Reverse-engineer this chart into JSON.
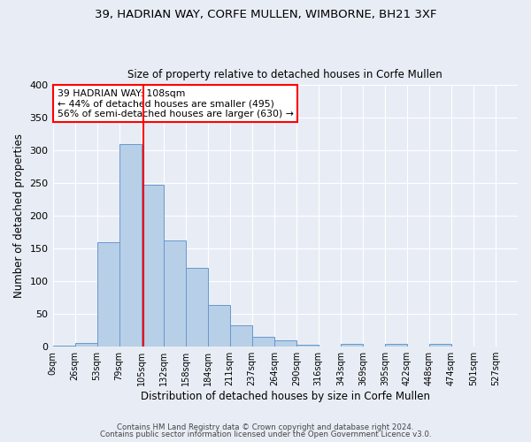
{
  "title1": "39, HADRIAN WAY, CORFE MULLEN, WIMBORNE, BH21 3XF",
  "title2": "Size of property relative to detached houses in Corfe Mullen",
  "xlabel": "Distribution of detached houses by size in Corfe Mullen",
  "ylabel": "Number of detached properties",
  "bin_labels": [
    "0sqm",
    "26sqm",
    "53sqm",
    "79sqm",
    "105sqm",
    "132sqm",
    "158sqm",
    "184sqm",
    "211sqm",
    "237sqm",
    "264sqm",
    "290sqm",
    "316sqm",
    "343sqm",
    "369sqm",
    "395sqm",
    "422sqm",
    "448sqm",
    "474sqm",
    "501sqm",
    "527sqm"
  ],
  "bar_heights": [
    2,
    5,
    160,
    310,
    248,
    163,
    121,
    64,
    32,
    15,
    9,
    3,
    0,
    4,
    0,
    4,
    0,
    4,
    0,
    0,
    0
  ],
  "bar_color": "#b8cfe8",
  "bar_edge_color": "#6699cc",
  "background_color": "#e8edf5",
  "grid_color": "#ffffff",
  "vline_color": "red",
  "vline_x": 4.1,
  "annotation_line1": "39 HADRIAN WAY: 108sqm",
  "annotation_line2": "← 44% of detached houses are smaller (495)",
  "annotation_line3": "56% of semi-detached houses are larger (630) →",
  "annotation_box_color": "white",
  "annotation_box_edge": "red",
  "footnote1": "Contains HM Land Registry data © Crown copyright and database right 2024.",
  "footnote2": "Contains public sector information licensed under the Open Government Licence v3.0.",
  "ylim": [
    0,
    400
  ],
  "yticks": [
    0,
    50,
    100,
    150,
    200,
    250,
    300,
    350,
    400
  ]
}
